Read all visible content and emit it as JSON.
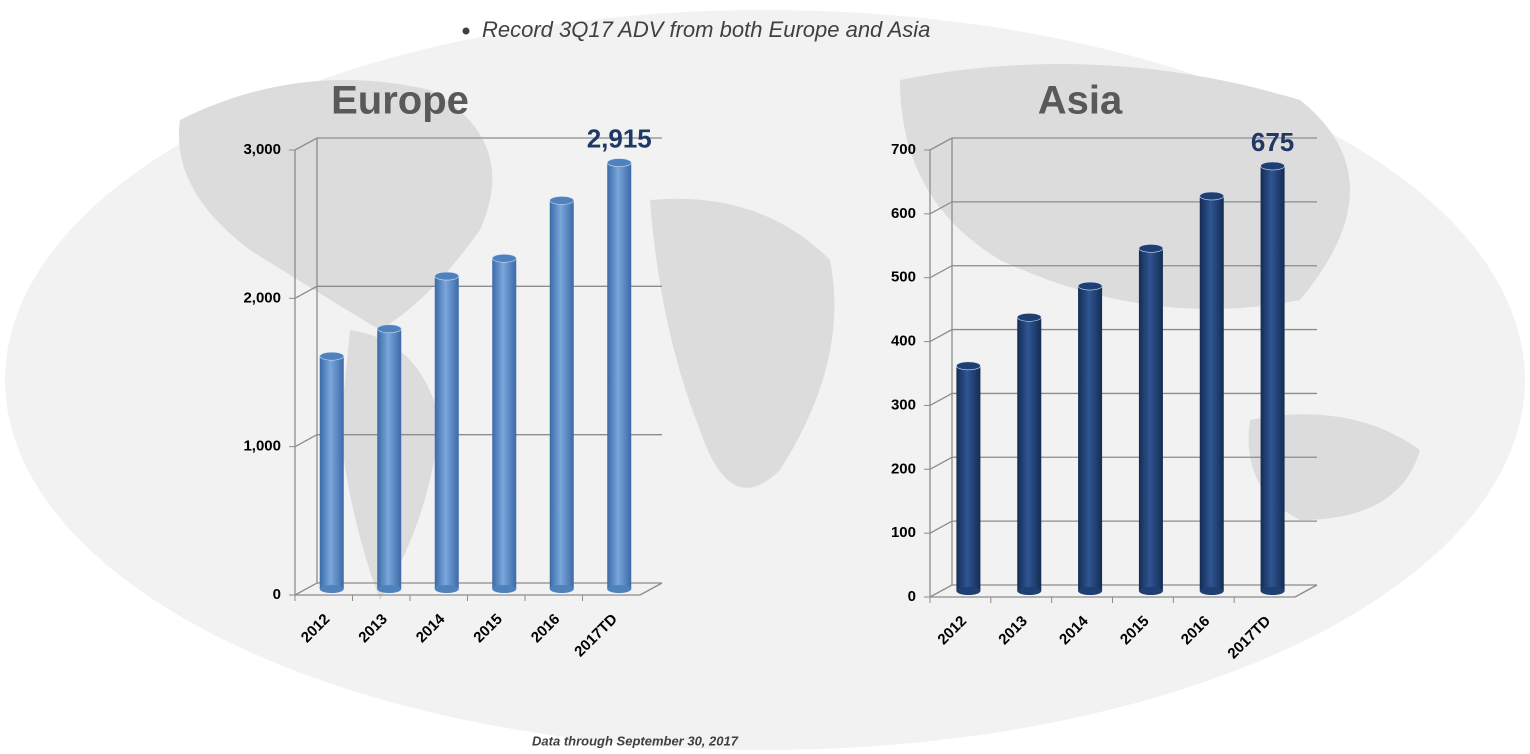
{
  "header": {
    "bullet": "Record 3Q17 ADV from both Europe and Asia"
  },
  "footer": {
    "note": "Data through September 30, 2017"
  },
  "chart_data": [
    {
      "type": "bar",
      "title": "Europe",
      "categories": [
        "2012",
        "2013",
        "2014",
        "2015",
        "2016",
        "2017TD"
      ],
      "values": [
        1610,
        1795,
        2150,
        2270,
        2660,
        2915
      ],
      "value_labels": [
        null,
        null,
        null,
        null,
        null,
        "2,915"
      ],
      "color": "#4f81bd",
      "ylim": [
        0,
        3000
      ],
      "yticks": [
        0,
        {
          "value": 1000,
          "label": "1,000"
        },
        {
          "value": 2000,
          "label": "2,000"
        },
        {
          "value": 3000,
          "label": "3,000"
        }
      ],
      "grid": true
    },
    {
      "type": "bar",
      "title": "Asia",
      "categories": [
        "2012",
        "2013",
        "2014",
        "2015",
        "2016",
        "2017TD"
      ],
      "values": [
        362,
        438,
        487,
        546,
        628,
        675
      ],
      "value_labels": [
        null,
        null,
        null,
        null,
        null,
        "675"
      ],
      "color": "#1f3f73",
      "ylim": [
        0,
        700
      ],
      "yticks": [
        0,
        100,
        200,
        300,
        400,
        500,
        600,
        700
      ],
      "grid": true
    }
  ]
}
